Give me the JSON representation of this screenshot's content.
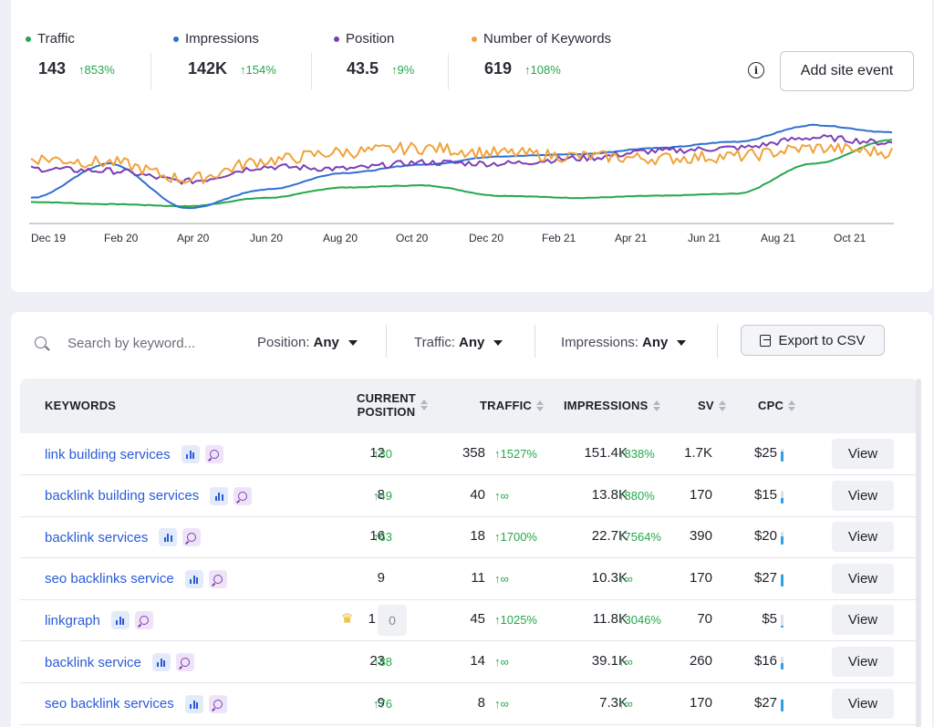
{
  "metrics": [
    {
      "label": "Traffic",
      "value": "143",
      "change": "853%",
      "color": "#25a74b"
    },
    {
      "label": "Impressions",
      "value": "142K",
      "change": "154%",
      "color": "#2f6fd1"
    },
    {
      "label": "Position",
      "value": "43.5",
      "change": "9%",
      "color": "#7b3fb5"
    },
    {
      "label": "Number of Keywords",
      "value": "619",
      "change": "108%",
      "color": "#f0a23a"
    }
  ],
  "info_icon": "i",
  "add_site_event_label": "Add site event",
  "chart_data": {
    "type": "line",
    "x": [
      "Dec 19",
      "Feb 20",
      "Apr 20",
      "Jun 20",
      "Aug 20",
      "Oct 20",
      "Dec 20",
      "Feb 21",
      "Apr 21",
      "Jun 21",
      "Aug 21",
      "Oct 21"
    ],
    "y_axis_labels_shown": false,
    "series": [
      {
        "name": "Traffic",
        "color": "#25a74b",
        "values": [
          18,
          16,
          14,
          22,
          32,
          34,
          24,
          22,
          24,
          26,
          55,
          78
        ]
      },
      {
        "name": "Impressions",
        "color": "#2f6fd1",
        "values": [
          22,
          55,
          12,
          30,
          46,
          54,
          62,
          64,
          70,
          76,
          92,
          85
        ]
      },
      {
        "name": "Position",
        "color": "#7b3fb5",
        "values": [
          50,
          48,
          38,
          52,
          50,
          56,
          55,
          60,
          67,
          70,
          80,
          75
        ]
      },
      {
        "name": "Number of Keywords",
        "color": "#f0a23a",
        "values": [
          60,
          56,
          40,
          58,
          66,
          70,
          65,
          62,
          60,
          62,
          70,
          66
        ]
      }
    ]
  },
  "search": {
    "placeholder": "Search by keyword..."
  },
  "filters": [
    {
      "label": "Position:",
      "value": "Any"
    },
    {
      "label": "Traffic:",
      "value": "Any"
    },
    {
      "label": "Impressions:",
      "value": "Any"
    }
  ],
  "export_label": "Export to CSV",
  "columns": {
    "keywords": "KEYWORDS",
    "position_line1": "CURRENT",
    "position_line2": "POSITION",
    "traffic": "TRAFFIC",
    "impressions": "IMPRESSIONS",
    "sv": "SV",
    "cpc": "CPC"
  },
  "rows": [
    {
      "keyword": "link building services",
      "position": "12",
      "position_change": "30",
      "crown": false,
      "prev": "",
      "traffic": "358",
      "traffic_change": "1527%",
      "impressions": "151.4K",
      "impressions_change": "838%",
      "sv": "1.7K",
      "cpc": "$25",
      "cpc_level": 0.8,
      "action": "View"
    },
    {
      "keyword": "backlink building services",
      "position": "8",
      "position_change": "49",
      "crown": false,
      "prev": "",
      "traffic": "40",
      "traffic_change": "∞",
      "impressions": "13.8K",
      "impressions_change": "880%",
      "sv": "170",
      "cpc": "$15",
      "cpc_level": 0.45,
      "action": "View"
    },
    {
      "keyword": "backlink services",
      "position": "16",
      "position_change": "63",
      "crown": false,
      "prev": "",
      "traffic": "18",
      "traffic_change": "1700%",
      "impressions": "22.7K",
      "impressions_change": "7564%",
      "sv": "390",
      "cpc": "$20",
      "cpc_level": 0.65,
      "action": "View"
    },
    {
      "keyword": "seo backlinks service",
      "position": "9",
      "position_change": "",
      "crown": false,
      "prev": "",
      "traffic": "11",
      "traffic_change": "∞",
      "impressions": "10.3K",
      "impressions_change": "∞",
      "sv": "170",
      "cpc": "$27",
      "cpc_level": 0.9,
      "action": "View"
    },
    {
      "keyword": "linkgraph",
      "position": "1",
      "position_change": "",
      "crown": true,
      "prev": "0",
      "traffic": "45",
      "traffic_change": "1025%",
      "impressions": "11.8K",
      "impressions_change": "3046%",
      "sv": "70",
      "cpc": "$5",
      "cpc_level": 0.15,
      "action": "View"
    },
    {
      "keyword": "backlink service",
      "position": "23",
      "position_change": "88",
      "crown": false,
      "prev": "",
      "traffic": "14",
      "traffic_change": "∞",
      "impressions": "39.1K",
      "impressions_change": "∞",
      "sv": "260",
      "cpc": "$16",
      "cpc_level": 0.5,
      "action": "View"
    },
    {
      "keyword": "seo backlink services",
      "position": "9",
      "position_change": "76",
      "crown": false,
      "prev": "",
      "traffic": "8",
      "traffic_change": "∞",
      "impressions": "7.3K",
      "impressions_change": "∞",
      "sv": "170",
      "cpc": "$27",
      "cpc_level": 0.9,
      "action": "View"
    }
  ]
}
